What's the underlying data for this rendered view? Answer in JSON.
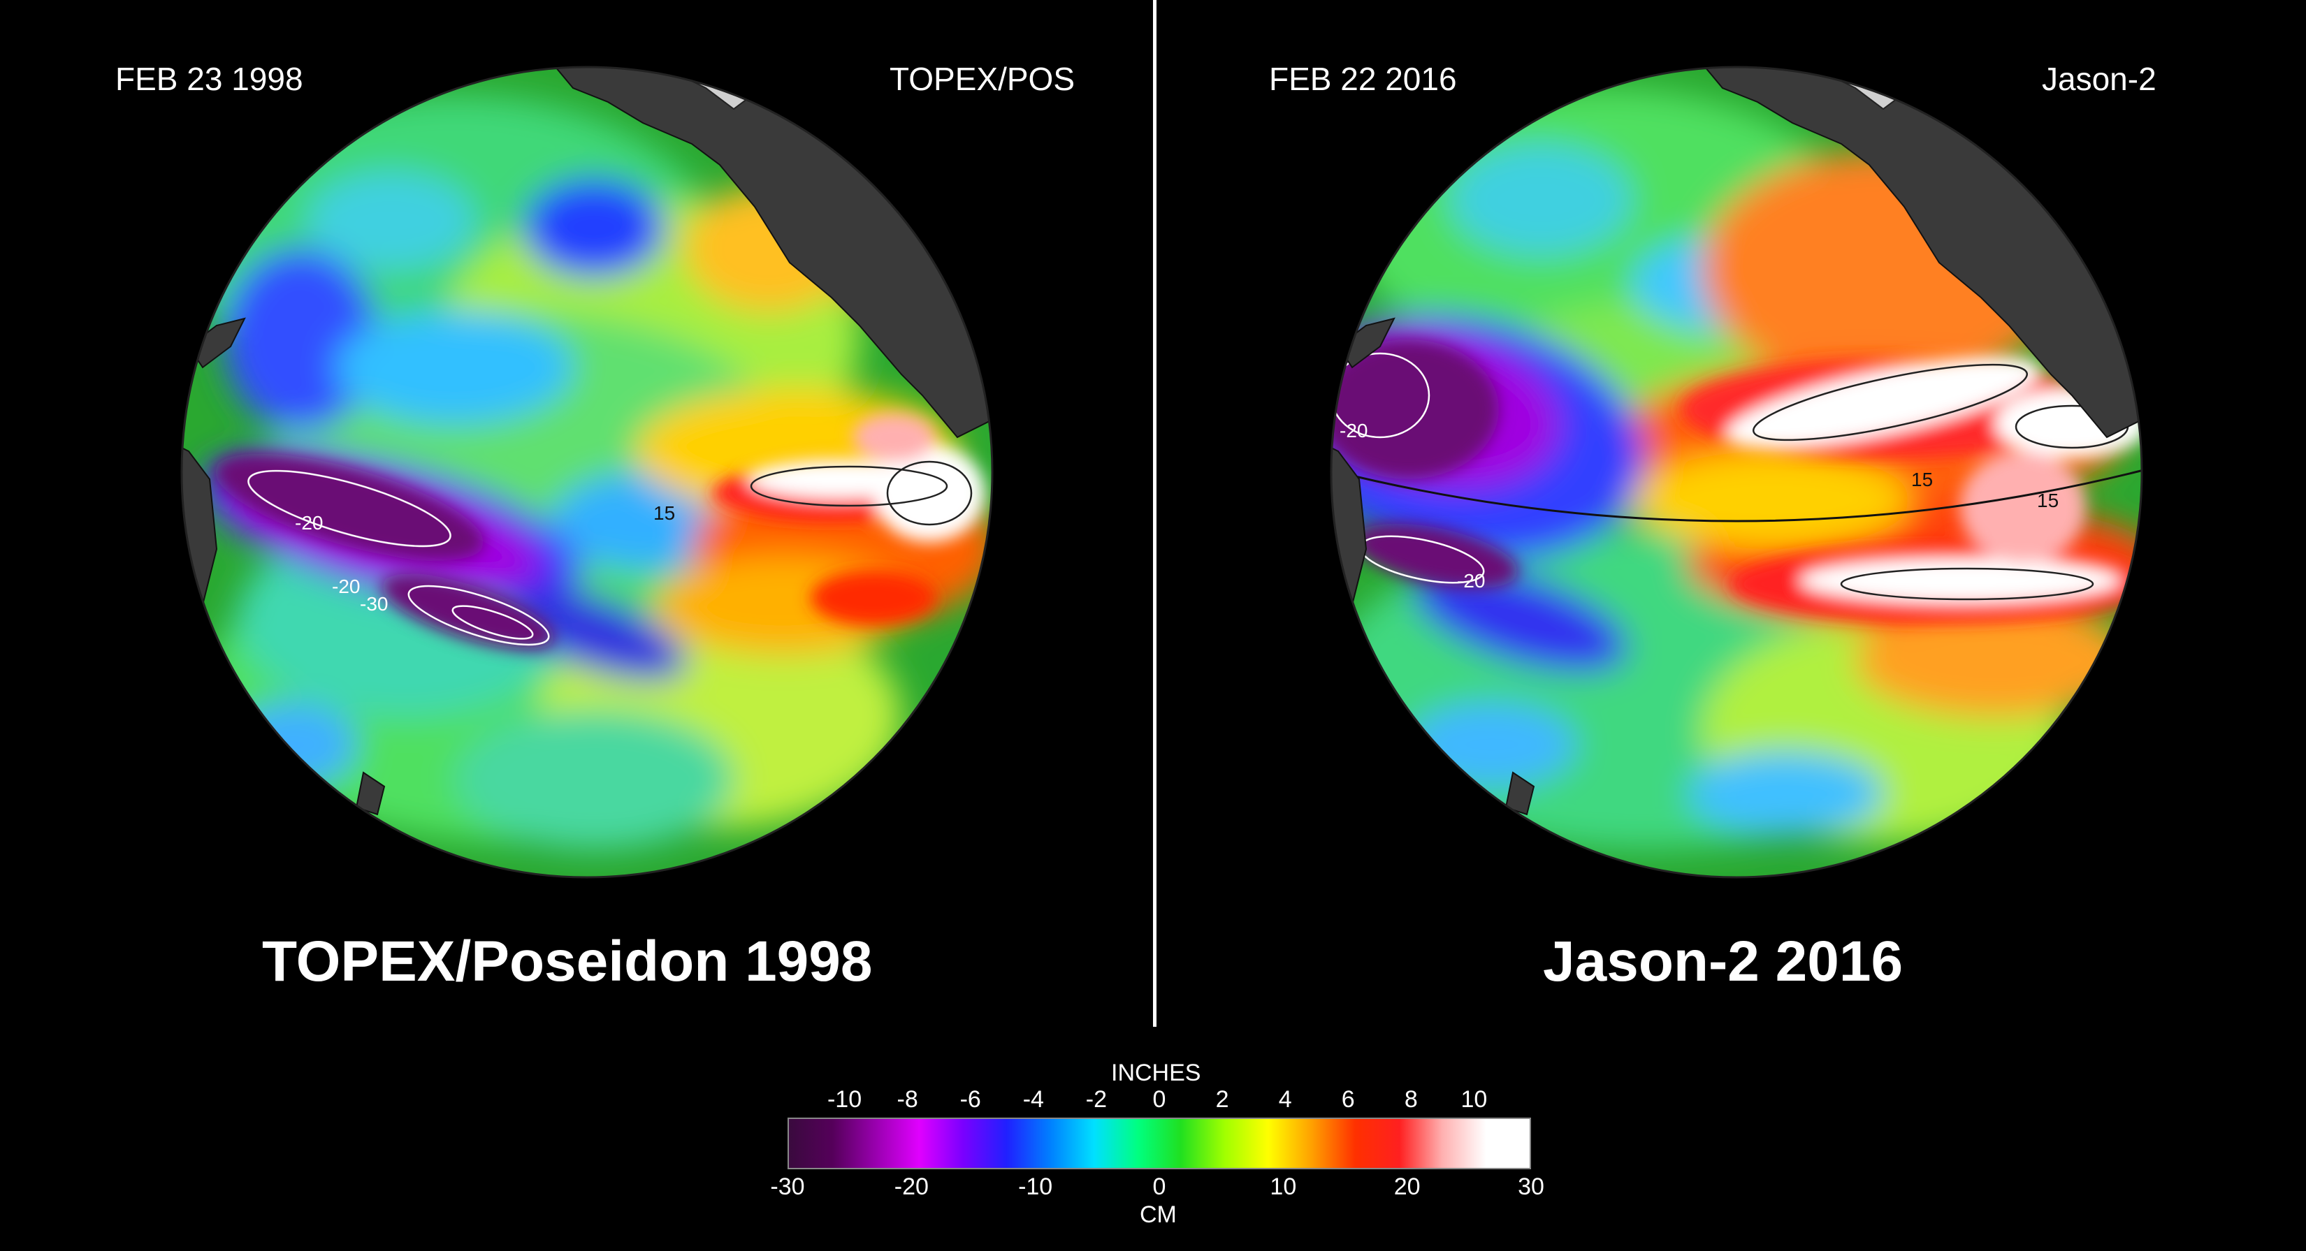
{
  "left_panel": {
    "date": "FEB 23  1998",
    "satellite": "TOPEX/POS",
    "title": "TOPEX/Poseidon 1998",
    "contour_labels": [
      "-20",
      "-20",
      "-30",
      "15"
    ]
  },
  "right_panel": {
    "date": "FEB 22  2016",
    "satellite": "Jason-2",
    "title": "Jason-2  2016",
    "contour_labels": [
      "-20",
      "-20",
      "15",
      "15"
    ]
  },
  "colorbar": {
    "top_title": "INCHES",
    "inch_ticks": [
      "-10",
      "-8",
      "-6",
      "-4",
      "-2",
      "0",
      "2",
      "4",
      "6",
      "8",
      "10"
    ],
    "cm_ticks": [
      "-30",
      "-20",
      "-10",
      "0",
      "10",
      "20",
      "30"
    ],
    "bottom_title": "CM",
    "range_cm": [
      -30,
      30
    ],
    "colors": [
      "#3a0a3e",
      "#55005a",
      "#9a00b0",
      "#e000ff",
      "#7a00ff",
      "#2020ff",
      "#0080ff",
      "#00e0ff",
      "#00ff80",
      "#20e020",
      "#a0ff00",
      "#ffff00",
      "#ffa000",
      "#ff3000",
      "#ff2020",
      "#ffb0b0",
      "#ffffff",
      "#ffffff"
    ]
  }
}
